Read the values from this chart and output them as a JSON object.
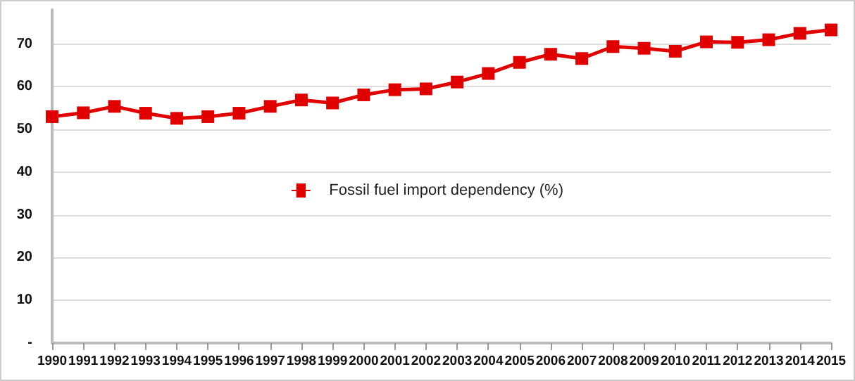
{
  "chart_data": {
    "type": "line",
    "categories": [
      "1990",
      "1991",
      "1992",
      "1993",
      "1994",
      "1995",
      "1996",
      "1997",
      "1998",
      "1999",
      "2000",
      "2001",
      "2002",
      "2003",
      "2004",
      "2005",
      "2006",
      "2007",
      "2008",
      "2009",
      "2010",
      "2011",
      "2012",
      "2013",
      "2014",
      "2015"
    ],
    "series": [
      {
        "name": "Fossil fuel import dependency (%)",
        "color": "#e00000",
        "values": [
          53.0,
          53.9,
          55.4,
          53.8,
          52.6,
          53.0,
          53.8,
          55.4,
          56.9,
          56.2,
          58.1,
          59.3,
          59.5,
          61.1,
          63.1,
          65.7,
          67.6,
          66.6,
          69.4,
          69.0,
          68.3,
          70.5,
          70.4,
          71.0,
          72.5,
          73.3
        ]
      }
    ],
    "ylim": [
      0,
      78
    ],
    "yticks": [
      {
        "value": 0,
        "label": "-"
      },
      10,
      20,
      30,
      40,
      50,
      60,
      70
    ],
    "grid": "y",
    "legend": "center",
    "marker": "square",
    "line_style": "solid"
  }
}
